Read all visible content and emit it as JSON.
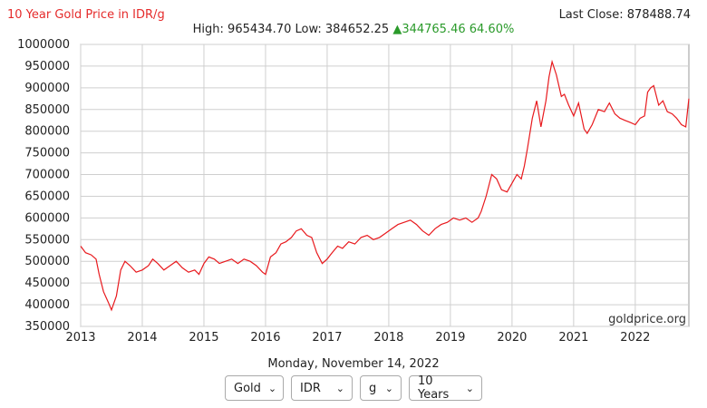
{
  "header": {
    "title": "10 Year Gold Price in IDR/g",
    "last_close": "Last Close: 878488.74",
    "high_low": "High: 965434.70 Low: 384652.25",
    "change_arrow": "▲",
    "change": "344765.46 64.60%"
  },
  "date_label": "Monday, November 14, 2022",
  "watermark": "goldprice.org",
  "controls": {
    "metal": "Gold",
    "currency": "IDR",
    "unit": "g",
    "period": "10 Years",
    "dropdown_icon": "chevron-down-icon"
  },
  "colors": {
    "line": "#e8191d",
    "title": "#e52b2b",
    "change_up": "#2a9a2a"
  },
  "chart_data": {
    "type": "line",
    "title": "10 Year Gold Price in IDR/g",
    "xlabel": "",
    "ylabel": "",
    "xlim": [
      2013.0,
      2022.87
    ],
    "ylim": [
      350000,
      1000000
    ],
    "x_ticks": [
      "2013",
      "2014",
      "2015",
      "2016",
      "2017",
      "2018",
      "2019",
      "2020",
      "2021",
      "2022"
    ],
    "y_ticks": [
      350000,
      400000,
      450000,
      500000,
      550000,
      600000,
      650000,
      700000,
      750000,
      800000,
      850000,
      900000,
      950000,
      1000000
    ],
    "grid": true,
    "legend": "none",
    "series": [
      {
        "x": [
          2013.0,
          2013.08,
          2013.17,
          2013.25,
          2013.3,
          2013.37,
          2013.45,
          2013.5,
          2013.58,
          2013.65,
          2013.72,
          2013.8,
          2013.9,
          2014.0,
          2014.1,
          2014.17,
          2014.25,
          2014.35,
          2014.45,
          2014.55,
          2014.65,
          2014.75,
          2014.85,
          2014.92,
          2015.0,
          2015.08,
          2015.17,
          2015.25,
          2015.35,
          2015.45,
          2015.55,
          2015.65,
          2015.75,
          2015.85,
          2015.95,
          2016.0,
          2016.08,
          2016.17,
          2016.25,
          2016.33,
          2016.42,
          2016.5,
          2016.58,
          2016.67,
          2016.75,
          2016.83,
          2016.92,
          2017.0,
          2017.08,
          2017.17,
          2017.25,
          2017.35,
          2017.45,
          2017.55,
          2017.65,
          2017.75,
          2017.85,
          2017.95,
          2018.05,
          2018.15,
          2018.25,
          2018.35,
          2018.45,
          2018.55,
          2018.65,
          2018.75,
          2018.85,
          2018.95,
          2019.05,
          2019.15,
          2019.25,
          2019.35,
          2019.45,
          2019.5,
          2019.58,
          2019.67,
          2019.75,
          2019.83,
          2019.92,
          2020.0,
          2020.08,
          2020.15,
          2020.2,
          2020.25,
          2020.33,
          2020.4,
          2020.47,
          2020.55,
          2020.6,
          2020.65,
          2020.72,
          2020.8,
          2020.85,
          2020.92,
          2021.0,
          2021.08,
          2021.17,
          2021.22,
          2021.3,
          2021.4,
          2021.5,
          2021.58,
          2021.67,
          2021.75,
          2021.83,
          2021.92,
          2022.0,
          2022.08,
          2022.15,
          2022.2,
          2022.25,
          2022.3,
          2022.38,
          2022.45,
          2022.52,
          2022.6,
          2022.67,
          2022.75,
          2022.82,
          2022.87
        ],
        "y": [
          535000,
          520000,
          515000,
          505000,
          470000,
          430000,
          405000,
          388000,
          420000,
          480000,
          500000,
          490000,
          475000,
          480000,
          490000,
          505000,
          495000,
          480000,
          490000,
          500000,
          485000,
          475000,
          480000,
          470000,
          495000,
          510000,
          505000,
          495000,
          500000,
          505000,
          495000,
          505000,
          500000,
          490000,
          475000,
          470000,
          510000,
          520000,
          540000,
          545000,
          555000,
          570000,
          575000,
          560000,
          555000,
          520000,
          495000,
          505000,
          520000,
          535000,
          530000,
          545000,
          540000,
          555000,
          560000,
          550000,
          555000,
          565000,
          575000,
          585000,
          590000,
          595000,
          585000,
          570000,
          560000,
          575000,
          585000,
          590000,
          600000,
          595000,
          600000,
          590000,
          600000,
          615000,
          650000,
          700000,
          690000,
          665000,
          660000,
          680000,
          700000,
          690000,
          720000,
          760000,
          830000,
          870000,
          810000,
          870000,
          925000,
          960000,
          930000,
          880000,
          885000,
          860000,
          835000,
          865000,
          805000,
          795000,
          815000,
          850000,
          845000,
          865000,
          840000,
          830000,
          825000,
          820000,
          815000,
          830000,
          835000,
          890000,
          900000,
          905000,
          860000,
          870000,
          845000,
          840000,
          830000,
          815000,
          810000,
          875000
        ]
      }
    ]
  }
}
